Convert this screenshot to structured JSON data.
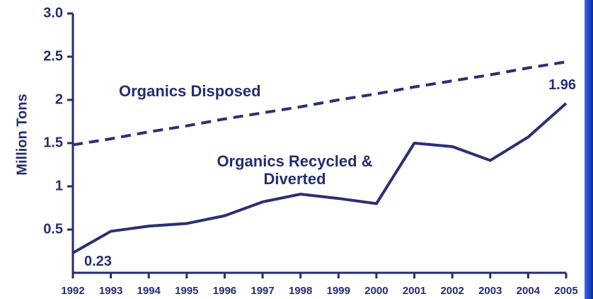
{
  "chart_data": {
    "type": "line",
    "y_label": "Million Tons",
    "categories": [
      "1992",
      "1993",
      "1994",
      "1995",
      "1996",
      "1997",
      "1998",
      "1999",
      "2000",
      "2001",
      "2002",
      "2003",
      "2004",
      "2005"
    ],
    "series": [
      {
        "name": "Organics Disposed",
        "color": "#2b2f73",
        "dashed": true,
        "values": [
          1.48,
          1.55,
          1.63,
          1.7,
          1.78,
          1.85,
          1.92,
          2.0,
          2.07,
          2.15,
          2.22,
          2.29,
          2.37,
          2.44
        ]
      },
      {
        "name": "Organics Recycled & Diverted",
        "color": "#2b2f73",
        "dashed": false,
        "values": [
          0.23,
          0.48,
          0.54,
          0.57,
          0.66,
          0.82,
          0.91,
          0.86,
          0.8,
          1.5,
          1.46,
          1.3,
          1.57,
          1.96
        ],
        "value_labels": [
          "0.23",
          null,
          null,
          null,
          null,
          null,
          null,
          null,
          null,
          null,
          null,
          null,
          null,
          "1.96"
        ]
      }
    ],
    "ylim": [
      0,
      3
    ],
    "yticks": [
      0.5,
      1,
      1.5,
      2,
      2.5,
      {
        "value": 3,
        "label": "3.0"
      }
    ]
  }
}
